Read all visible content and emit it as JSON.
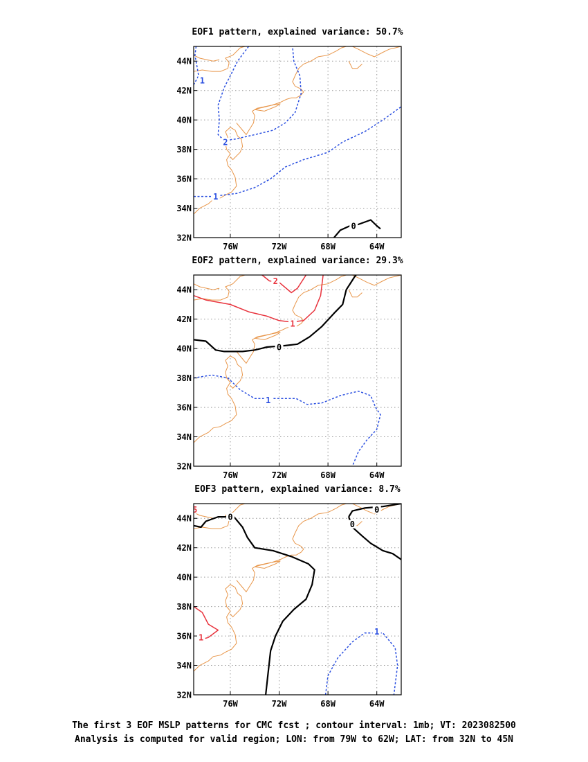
{
  "caption": {
    "line1": "The first 3 EOF MSLP patterns for CMC fcst ; contour interval: 1mb; VT: 2023082500",
    "line2": "Analysis is computed for valid region; LON: from 79W to 62W; LAT: from 32N to 45N"
  },
  "colors": {
    "coast": "#e8964a",
    "positive": "#e8323c",
    "negative": "#2a4fe0",
    "zero": "#000000",
    "grid": "#999999"
  },
  "chart_data": [
    {
      "type": "contour",
      "title": "EOF1 pattern, explained variance: 50.7%",
      "xlim": [
        -79,
        -62
      ],
      "ylim": [
        32,
        45
      ],
      "xticks": [
        -76,
        -72,
        -68,
        -64
      ],
      "xticklabels": [
        "76W",
        "72W",
        "68W",
        "64W"
      ],
      "yticks": [
        32,
        34,
        36,
        38,
        40,
        42,
        44
      ],
      "yticklabels": [
        "32N",
        "34N",
        "36N",
        "38N",
        "40N",
        "42N",
        "44N"
      ],
      "grid": true,
      "contours": [
        {
          "level": -1,
          "label": "1",
          "label_at": [
            -77.2,
            34.8
          ],
          "style": "dashed",
          "points": [
            [
              -79,
              34.8
            ],
            [
              -77.5,
              34.8
            ],
            [
              -75.5,
              35.0
            ],
            [
              -74,
              35.4
            ],
            [
              -72.7,
              36.0
            ],
            [
              -71.5,
              36.8
            ],
            [
              -70,
              37.3
            ],
            [
              -68,
              37.8
            ],
            [
              -66.8,
              38.5
            ],
            [
              -65,
              39.2
            ],
            [
              -63.5,
              40.0
            ],
            [
              -62,
              40.9
            ]
          ]
        },
        {
          "level": -1,
          "label": "1",
          "label_at": [
            -78.3,
            42.7
          ],
          "style": "dashed",
          "points": [
            [
              -78.8,
              45
            ],
            [
              -78.9,
              44.4
            ],
            [
              -78.7,
              43.5
            ],
            [
              -78.6,
              43.0
            ],
            [
              -79,
              42.4
            ]
          ]
        },
        {
          "level": -2,
          "label": "2",
          "label_at": [
            -76.4,
            38.5
          ],
          "style": "dashed",
          "points": [
            [
              -74.5,
              45
            ],
            [
              -75.4,
              44.0
            ],
            [
              -76.0,
              43.0
            ],
            [
              -76.5,
              42.2
            ],
            [
              -77.0,
              41.0
            ],
            [
              -76.9,
              40.0
            ],
            [
              -77.0,
              39.0
            ],
            [
              -76.5,
              38.6
            ],
            [
              -75.6,
              38.7
            ],
            [
              -74.0,
              39.0
            ],
            [
              -72.5,
              39.3
            ],
            [
              -71.5,
              39.8
            ],
            [
              -70.7,
              40.5
            ],
            [
              -70.2,
              41.8
            ],
            [
              -70.3,
              43.0
            ],
            [
              -70.8,
              44.0
            ],
            [
              -70.9,
              45
            ]
          ]
        },
        {
          "level": 0,
          "label": "0",
          "label_at": [
            -65.9,
            32.8
          ],
          "style": "solid",
          "points": [
            [
              -67.5,
              32
            ],
            [
              -67.0,
              32.5
            ],
            [
              -66.2,
              32.8
            ],
            [
              -65.5,
              32.9
            ],
            [
              -64.5,
              33.2
            ],
            [
              -64.0,
              32.8
            ],
            [
              -63.7,
              32.6
            ]
          ]
        }
      ]
    },
    {
      "type": "contour",
      "title": "EOF2 pattern, explained variance: 29.3%",
      "xlim": [
        -79,
        -62
      ],
      "ylim": [
        32,
        45
      ],
      "xticks": [
        -76,
        -72,
        -68,
        -64
      ],
      "xticklabels": [
        "76W",
        "72W",
        "68W",
        "64W"
      ],
      "yticks": [
        32,
        34,
        36,
        38,
        40,
        42,
        44
      ],
      "yticklabels": [
        "32N",
        "34N",
        "36N",
        "38N",
        "40N",
        "42N",
        "44N"
      ],
      "grid": true,
      "contours": [
        {
          "level": 2,
          "label": "2",
          "label_at": [
            -72.3,
            44.6
          ],
          "style": "solid",
          "points": [
            [
              -73.4,
              45
            ],
            [
              -72.8,
              44.6
            ],
            [
              -72.0,
              44.5
            ],
            [
              -71.0,
              43.8
            ],
            [
              -70.5,
              44.1
            ],
            [
              -69.8,
              45
            ]
          ]
        },
        {
          "level": 1,
          "label": "1",
          "label_at": [
            -70.9,
            41.7
          ],
          "style": "solid",
          "points": [
            [
              -79,
              43.6
            ],
            [
              -78.0,
              43.3
            ],
            [
              -76.0,
              43.0
            ],
            [
              -74.5,
              42.5
            ],
            [
              -73.0,
              42.2
            ],
            [
              -72.0,
              41.9
            ],
            [
              -71.0,
              41.8
            ],
            [
              -70.0,
              41.9
            ],
            [
              -69.1,
              42.6
            ],
            [
              -68.6,
              43.6
            ],
            [
              -68.4,
              45
            ]
          ]
        },
        {
          "level": 0,
          "label": "0",
          "label_at": [
            -72.0,
            40.1
          ],
          "style": "solid",
          "points": [
            [
              -79,
              40.6
            ],
            [
              -78.0,
              40.5
            ],
            [
              -77.2,
              39.9
            ],
            [
              -76.5,
              39.8
            ],
            [
              -75.0,
              39.8
            ],
            [
              -74.0,
              39.9
            ],
            [
              -73.0,
              40.1
            ],
            [
              -71.5,
              40.2
            ],
            [
              -70.5,
              40.3
            ],
            [
              -69.5,
              40.8
            ],
            [
              -68.5,
              41.5
            ],
            [
              -67.5,
              42.4
            ],
            [
              -66.8,
              43.0
            ],
            [
              -66.5,
              44.0
            ],
            [
              -65.8,
              44.9
            ],
            [
              -65.7,
              45
            ]
          ]
        },
        {
          "level": -1,
          "label": "1",
          "label_at": [
            -72.9,
            36.5
          ],
          "style": "dashed",
          "points": [
            [
              -79,
              38.0
            ],
            [
              -77.5,
              38.2
            ],
            [
              -76.2,
              38.0
            ],
            [
              -75.2,
              37.2
            ],
            [
              -74.0,
              36.6
            ],
            [
              -72.0,
              36.6
            ],
            [
              -70.6,
              36.6
            ],
            [
              -69.7,
              36.2
            ],
            [
              -68.5,
              36.3
            ],
            [
              -67.0,
              36.8
            ],
            [
              -65.5,
              37.1
            ],
            [
              -64.5,
              36.8
            ],
            [
              -64.1,
              36.0
            ],
            [
              -63.7,
              35.5
            ],
            [
              -64.0,
              34.5
            ],
            [
              -64.8,
              33.8
            ],
            [
              -65.5,
              33.0
            ],
            [
              -66.0,
              32
            ]
          ]
        }
      ]
    },
    {
      "type": "contour",
      "title": "EOF3 pattern, explained variance: 8.7%",
      "xlim": [
        -79,
        -62
      ],
      "ylim": [
        32,
        45
      ],
      "xticks": [
        -76,
        -72,
        -68,
        -64
      ],
      "xticklabels": [
        "76W",
        "72W",
        "68W",
        "64W"
      ],
      "yticks": [
        32,
        34,
        36,
        38,
        40,
        42,
        44
      ],
      "yticklabels": [
        "32N",
        "34N",
        "36N",
        "38N",
        "40N",
        "42N",
        "44N"
      ],
      "grid": true,
      "contours": [
        {
          "level": 0,
          "label": "0",
          "label_at": [
            -76.0,
            44.1
          ],
          "style": "solid",
          "points": [
            [
              -79,
              43.5
            ],
            [
              -78.4,
              43.4
            ],
            [
              -78.0,
              43.8
            ],
            [
              -77.0,
              44.1
            ],
            [
              -75.7,
              44.1
            ],
            [
              -75.0,
              43.4
            ],
            [
              -74.6,
              42.7
            ],
            [
              -74.0,
              42.0
            ],
            [
              -72.5,
              41.8
            ],
            [
              -71.0,
              41.4
            ],
            [
              -69.6,
              40.9
            ],
            [
              -69.1,
              40.5
            ],
            [
              -69.3,
              39.5
            ],
            [
              -69.8,
              38.5
            ],
            [
              -70.8,
              37.8
            ],
            [
              -71.7,
              37.0
            ],
            [
              -72.3,
              36.0
            ],
            [
              -72.7,
              35.0
            ],
            [
              -72.9,
              33.5
            ],
            [
              -73.1,
              32
            ]
          ]
        },
        {
          "level": 0,
          "label": "0",
          "label_at": [
            -64.0,
            44.6
          ],
          "style": "solid",
          "points": [
            [
              -66.3,
              44.1
            ],
            [
              -66.0,
              44.5
            ],
            [
              -65.0,
              44.7
            ],
            [
              -63.5,
              44.8
            ],
            [
              -62,
              45.0
            ]
          ]
        },
        {
          "level": 0,
          "label": "0",
          "label_at": [
            -66.0,
            43.6
          ],
          "style": "solid",
          "points": [
            [
              -66.3,
              44.1
            ],
            [
              -66.0,
              43.4
            ],
            [
              -65.2,
              42.8
            ],
            [
              -64.5,
              42.3
            ],
            [
              -63.5,
              41.8
            ],
            [
              -62.7,
              41.6
            ],
            [
              -62,
              41.2
            ]
          ]
        },
        {
          "level": 5,
          "label": "5",
          "label_at": [
            -78.9,
            44.6
          ],
          "style": "solid",
          "points": []
        },
        {
          "level": 1,
          "label": "1",
          "label_at": [
            -78.4,
            35.9
          ],
          "style": "solid",
          "points": [
            [
              -79,
              38.0
            ],
            [
              -78.3,
              37.6
            ],
            [
              -77.8,
              36.8
            ],
            [
              -77.0,
              36.4
            ],
            [
              -77.8,
              35.9
            ],
            [
              -78.6,
              35.7
            ]
          ]
        },
        {
          "level": -1,
          "label": "1",
          "label_at": [
            -64.0,
            36.3
          ],
          "style": "dashed",
          "points": [
            [
              -68.2,
              32
            ],
            [
              -68.0,
              33.3
            ],
            [
              -67.2,
              34.5
            ],
            [
              -66.0,
              35.6
            ],
            [
              -65.0,
              36.2
            ],
            [
              -63.5,
              36.2
            ],
            [
              -62.5,
              35.2
            ],
            [
              -62.3,
              34.0
            ],
            [
              -62.6,
              32
            ]
          ]
        }
      ]
    }
  ]
}
